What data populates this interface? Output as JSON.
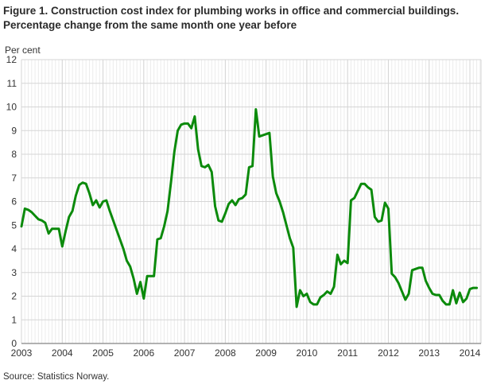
{
  "figure": {
    "title": "Figure 1. Construction cost index for plumbing works in office and commercial buildings. Percentage change from the same month one year before",
    "y_axis_label": "Per cent",
    "source": "Source: Statistics Norway."
  },
  "chart_data": {
    "type": "line",
    "title": "Construction cost index for plumbing works in office and commercial buildings. Percentage change from the same month one year before",
    "xlabel": "",
    "ylabel": "Per cent",
    "ylim": [
      0,
      12
    ],
    "y_ticks": [
      0,
      1,
      2,
      3,
      4,
      5,
      6,
      7,
      8,
      9,
      10,
      11,
      12
    ],
    "x_ticks": [
      2003,
      2004,
      2005,
      2006,
      2007,
      2008,
      2009,
      2010,
      2011,
      2012,
      2013,
      2014
    ],
    "frequency": "monthly",
    "x_start_year": 2003,
    "x_start_month": 1,
    "grid": "both",
    "legend": "none",
    "line_color": "#0b8a0b",
    "series": [
      {
        "name": "Percentage change from the same month one year before",
        "values": [
          4.95,
          5.7,
          5.65,
          5.55,
          5.4,
          5.25,
          5.2,
          5.1,
          4.65,
          4.85,
          4.85,
          4.85,
          4.1,
          4.75,
          5.35,
          5.6,
          6.25,
          6.7,
          6.8,
          6.75,
          6.35,
          5.85,
          6.05,
          5.75,
          6.0,
          6.05,
          5.6,
          5.2,
          4.8,
          4.4,
          4.0,
          3.5,
          3.25,
          2.75,
          2.1,
          2.6,
          1.9,
          2.85,
          2.85,
          2.85,
          4.4,
          4.45,
          4.95,
          5.6,
          6.8,
          8.1,
          9.0,
          9.25,
          9.3,
          9.3,
          9.1,
          9.6,
          8.2,
          7.5,
          7.45,
          7.55,
          7.25,
          5.8,
          5.2,
          5.15,
          5.5,
          5.9,
          6.05,
          5.85,
          6.1,
          6.15,
          6.3,
          7.45,
          7.5,
          9.9,
          8.75,
          8.8,
          8.85,
          8.9,
          7.05,
          6.35,
          6.0,
          5.55,
          5.0,
          4.45,
          4.05,
          1.55,
          2.25,
          2.0,
          2.1,
          1.75,
          1.65,
          1.65,
          1.95,
          2.05,
          2.2,
          2.1,
          2.4,
          3.75,
          3.35,
          3.5,
          3.4,
          6.05,
          6.15,
          6.45,
          6.75,
          6.75,
          6.6,
          6.5,
          5.35,
          5.15,
          5.2,
          5.95,
          5.7,
          2.95,
          2.8,
          2.55,
          2.2,
          1.85,
          2.1,
          3.1,
          3.15,
          3.2,
          3.2,
          2.65,
          2.35,
          2.1,
          2.05,
          2.05,
          1.8,
          1.65,
          1.65,
          2.25,
          1.7,
          2.15,
          1.75,
          1.9,
          2.3,
          2.35,
          2.35
        ]
      }
    ],
    "colors": {
      "grid_minor": "#ececec",
      "grid_major": "#d5d5d5",
      "axis_line": "#999999",
      "tick_text": "#333333"
    }
  }
}
